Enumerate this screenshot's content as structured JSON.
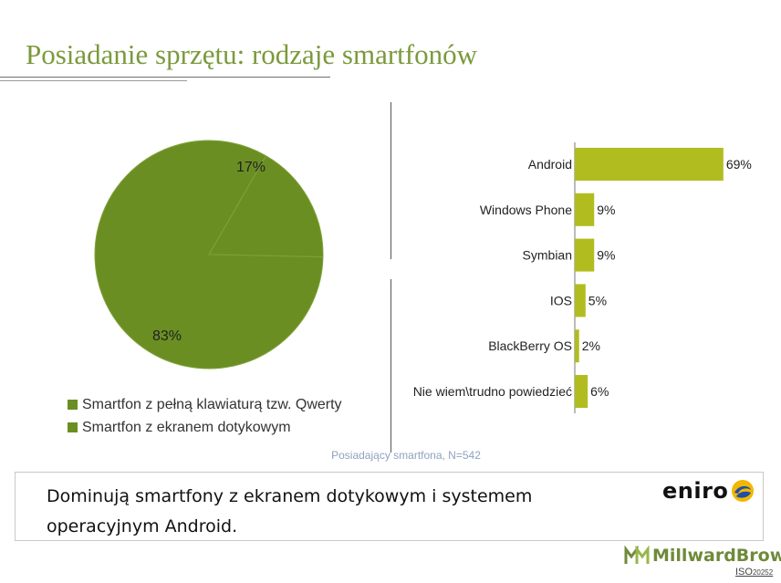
{
  "slide": {
    "title": "Posiadanie sprzętu: rodzaje smartfonów",
    "base_note": "Posiadający smartfona, N=542",
    "callout_line1": "Dominują smartfony z ekranem dotykowym i systemem",
    "callout_line2": "operacyjnym Android.",
    "logo_eniro": "eniro",
    "logo_millwardbrown": "MillwardBrown",
    "iso_label": "ISO",
    "iso_number": "20252"
  },
  "chart_data": [
    {
      "type": "pie",
      "categories": [
        "Smartfon z pełną klawiaturą tzw. Qwerty",
        "Smartfon z ekranem dotykowym"
      ],
      "values": [
        17,
        83
      ],
      "labels": [
        "17%",
        "83%"
      ],
      "colors": [
        "#6b8e23",
        "#6b8e23"
      ],
      "legend": "bottom"
    },
    {
      "type": "bar",
      "orientation": "horizontal",
      "categories": [
        "Android",
        "Windows Phone",
        "Symbian",
        "IOS",
        "BlackBerry OS",
        "Nie wiem\\trudno powiedzieć"
      ],
      "values": [
        69,
        9,
        9,
        5,
        2,
        6
      ],
      "labels": [
        "69%",
        "9%",
        "9%",
        "5%",
        "2%",
        "6%"
      ],
      "color": "#b1bd1f",
      "xlim": [
        0,
        100
      ]
    }
  ]
}
